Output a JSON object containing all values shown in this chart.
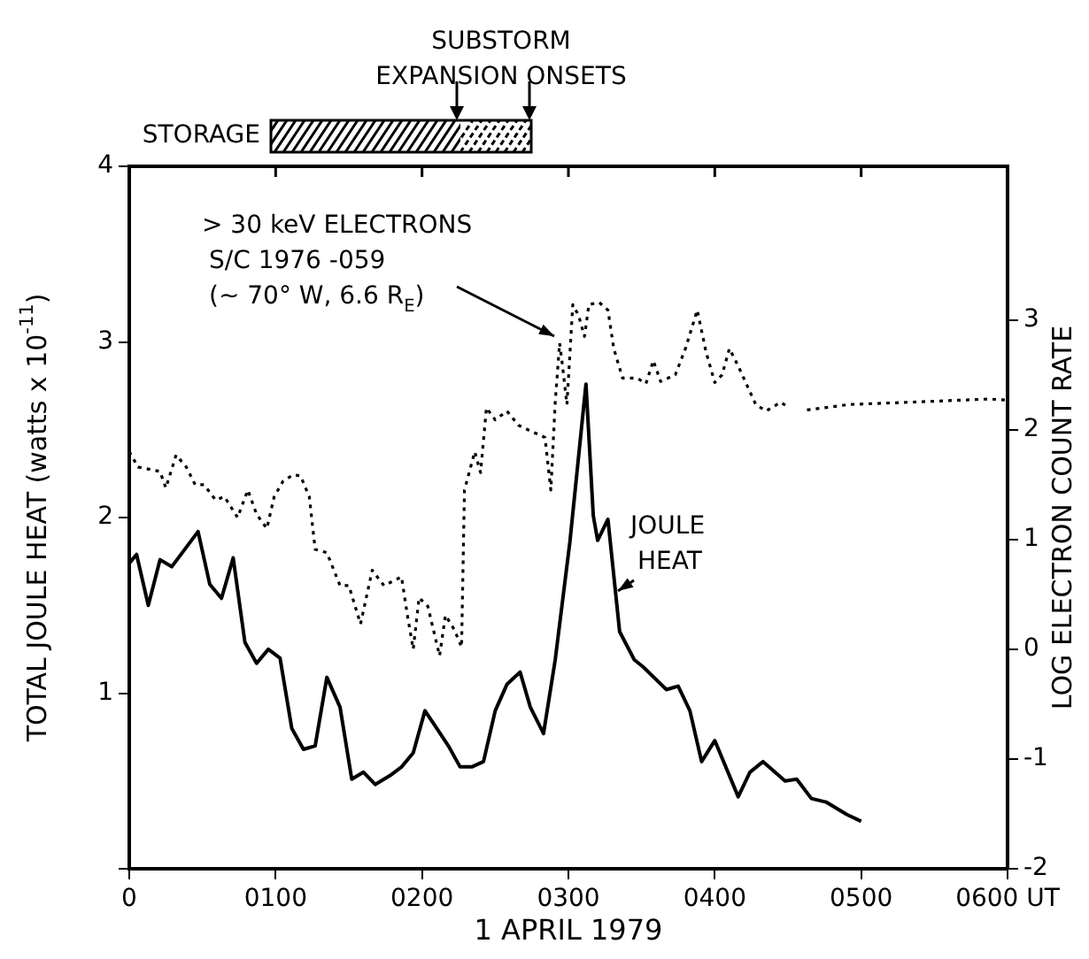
{
  "chart_data": {
    "type": "line",
    "xlabel": "1 APRIL 1979",
    "ylabel": "TOTAL JOULE HEAT (watts x 10$^{-11}$)",
    "y2label": "LOG ELECTRON COUNT RATE",
    "xlim": [
      0,
      600
    ],
    "xticks": [
      0,
      {
        "value": 100,
        "label": "0100"
      },
      {
        "value": 200,
        "label": "0200"
      },
      {
        "value": 300,
        "label": "0300"
      },
      {
        "value": 400,
        "label": "0400"
      },
      {
        "value": 500,
        "label": "0500"
      },
      {
        "value": 600,
        "label": "0600 UT"
      }
    ],
    "ylim": [
      0,
      4
    ],
    "yticks": [
      {
        "value": 0,
        "label": null
      },
      1,
      2,
      3,
      4
    ],
    "y2lim": [
      -2,
      4.4
    ],
    "y2ticks": [
      -2,
      -1,
      0,
      1,
      2,
      3
    ],
    "grid": false,
    "legend": false,
    "marker": "none",
    "annotations": [
      "STORAGE",
      "SUBSTORM\nEXPANSION ONSETS"
    ],
    "series": [
      {
        "name": "JOULE\nHEAT",
        "color": "#000000",
        "line_style": "solid",
        "x": [
          0,
          5,
          13,
          21,
          29,
          47,
          55,
          63,
          71,
          79,
          87,
          95,
          103,
          111,
          119,
          127,
          135,
          144,
          152,
          160,
          168,
          178,
          186,
          194,
          202,
          210,
          218,
          226,
          234,
          242,
          250,
          258,
          267,
          274,
          283,
          291,
          301,
          312,
          317,
          320,
          327,
          335,
          345,
          351,
          367,
          375,
          383,
          391,
          400,
          416,
          424,
          433,
          448,
          456,
          466,
          476,
          490,
          500
        ],
        "values": [
          1.74,
          1.79,
          1.5,
          1.76,
          1.72,
          1.92,
          1.62,
          1.54,
          1.77,
          1.29,
          1.17,
          1.25,
          1.2,
          0.8,
          0.68,
          0.7,
          1.09,
          0.92,
          0.51,
          0.55,
          0.48,
          0.53,
          0.58,
          0.66,
          0.9,
          0.8,
          0.7,
          0.58,
          0.58,
          0.61,
          0.9,
          1.05,
          1.12,
          0.92,
          0.77,
          1.19,
          1.86,
          2.76,
          2.01,
          1.87,
          1.99,
          1.35,
          1.19,
          1.15,
          1.02,
          1.04,
          0.9,
          0.61,
          0.73,
          0.41,
          0.55,
          0.61,
          0.5,
          0.51,
          0.4,
          0.38,
          0.31,
          0.27
        ]
      },
      {
        "name": "> 30 keV ELECTRONS\nS/C 1976 -059\n(~ 70° W, 6.6 R$_{E}$)",
        "color": "#000000",
        "axis": "y2",
        "line_style": "dotted",
        "x": [
          0,
          6,
          21,
          25,
          32,
          39,
          45,
          51,
          59,
          65,
          74,
          81,
          87,
          94,
          99,
          105,
          112,
          117,
          123,
          127,
          135,
          144,
          150,
          158,
          166,
          174,
          186,
          190,
          194,
          198,
          204,
          212,
          216,
          222,
          227,
          229,
          236,
          240,
          244,
          250,
          258,
          266,
          274,
          284,
          288,
          291,
          294,
          296,
          299,
          303,
          307,
          311,
          314,
          321,
          327,
          331,
          337,
          347,
          353,
          358,
          363,
          373,
          380,
          388,
          394,
          400,
          405,
          410,
          416,
          428,
          435,
          445,
          451,
          457,
          463,
          492,
          532,
          587,
          600
        ],
        "values": [
          1.8,
          1.66,
          1.62,
          1.47,
          1.77,
          1.66,
          1.5,
          1.5,
          1.36,
          1.39,
          1.2,
          1.45,
          1.23,
          1.1,
          1.39,
          1.53,
          1.59,
          1.58,
          1.39,
          0.91,
          0.88,
          0.58,
          0.58,
          0.23,
          0.72,
          0.58,
          0.66,
          0.31,
          0.0,
          0.47,
          0.39,
          -0.06,
          0.31,
          0.18,
          0.02,
          1.45,
          1.8,
          1.61,
          2.2,
          2.09,
          2.17,
          2.04,
          1.99,
          1.93,
          1.45,
          2.25,
          2.79,
          2.58,
          2.23,
          3.14,
          3.04,
          2.85,
          3.14,
          3.16,
          3.09,
          2.74,
          2.47,
          2.47,
          2.42,
          2.63,
          2.44,
          2.5,
          2.74,
          3.09,
          2.71,
          2.43,
          2.5,
          2.74,
          2.58,
          2.23,
          2.17,
          2.25,
          2.2,
          null,
          2.18,
          2.23,
          2.25,
          2.28,
          2.27
        ]
      }
    ]
  }
}
